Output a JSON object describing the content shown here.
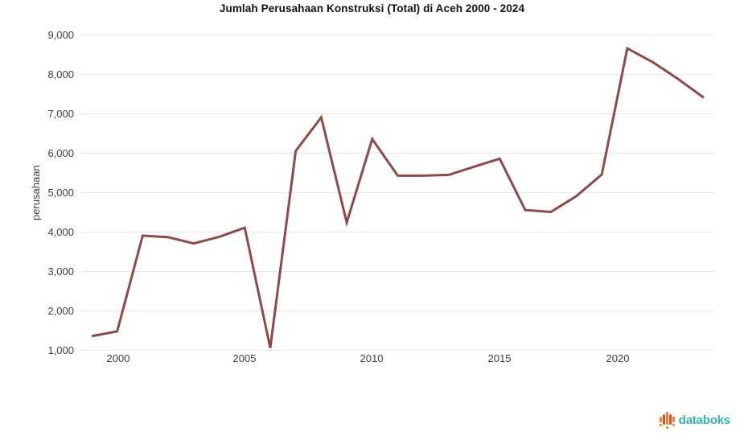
{
  "page": {
    "title": "Jumlah Perusahaan Konstruksi (Total) di Aceh 2000 - 2024"
  },
  "chart_data": {
    "type": "line",
    "title": "Jumlah Perusahaan Konstruksi (Total) di Aceh 2000 - 2024",
    "xlabel": "",
    "ylabel": "perusahaan",
    "x": [
      2000,
      2001,
      2002,
      2003,
      2004,
      2005,
      2006,
      2007,
      2008,
      2009,
      2010,
      2011,
      2012,
      2013,
      2014,
      2015,
      2016,
      2017,
      2018,
      2019,
      2020,
      2021,
      2022,
      2023,
      2024
    ],
    "series": [
      {
        "name": "Jumlah Perusahaan Konstruksi (Total)",
        "values": [
          1350,
          1470,
          3900,
          3860,
          3700,
          3870,
          4100,
          1050,
          6050,
          6900,
          4230,
          6350,
          5420,
          5420,
          5440,
          5650,
          5850,
          4550,
          4500,
          4900,
          5450,
          8650,
          8300,
          7870,
          7400
        ]
      }
    ],
    "ylim": [
      1000,
      9000
    ],
    "y_ticks": [
      {
        "value": 1000,
        "label": "1,000"
      },
      {
        "value": 2000,
        "label": "2,000"
      },
      {
        "value": 3000,
        "label": "3,000"
      },
      {
        "value": 4000,
        "label": "4,000"
      },
      {
        "value": 5000,
        "label": "5,000"
      },
      {
        "value": 6000,
        "label": "6,000"
      },
      {
        "value": 7000,
        "label": "7,000"
      },
      {
        "value": 8000,
        "label": "8,000"
      },
      {
        "value": 9000,
        "label": "9,000"
      }
    ],
    "x_tick_labels": [
      "2000",
      "2005",
      "2010",
      "2015",
      "2020"
    ],
    "grid": "horizontal",
    "legend": "none",
    "line_color": "#8E4A44",
    "grid_color": "#E6E6E6"
  },
  "footer": {
    "brand": "databoks",
    "brand_color": "#2FB5B2",
    "icon_bar_colors": [
      "#F58220",
      "#E0493F",
      "#F58220",
      "#E0493F",
      "#F58220"
    ]
  }
}
